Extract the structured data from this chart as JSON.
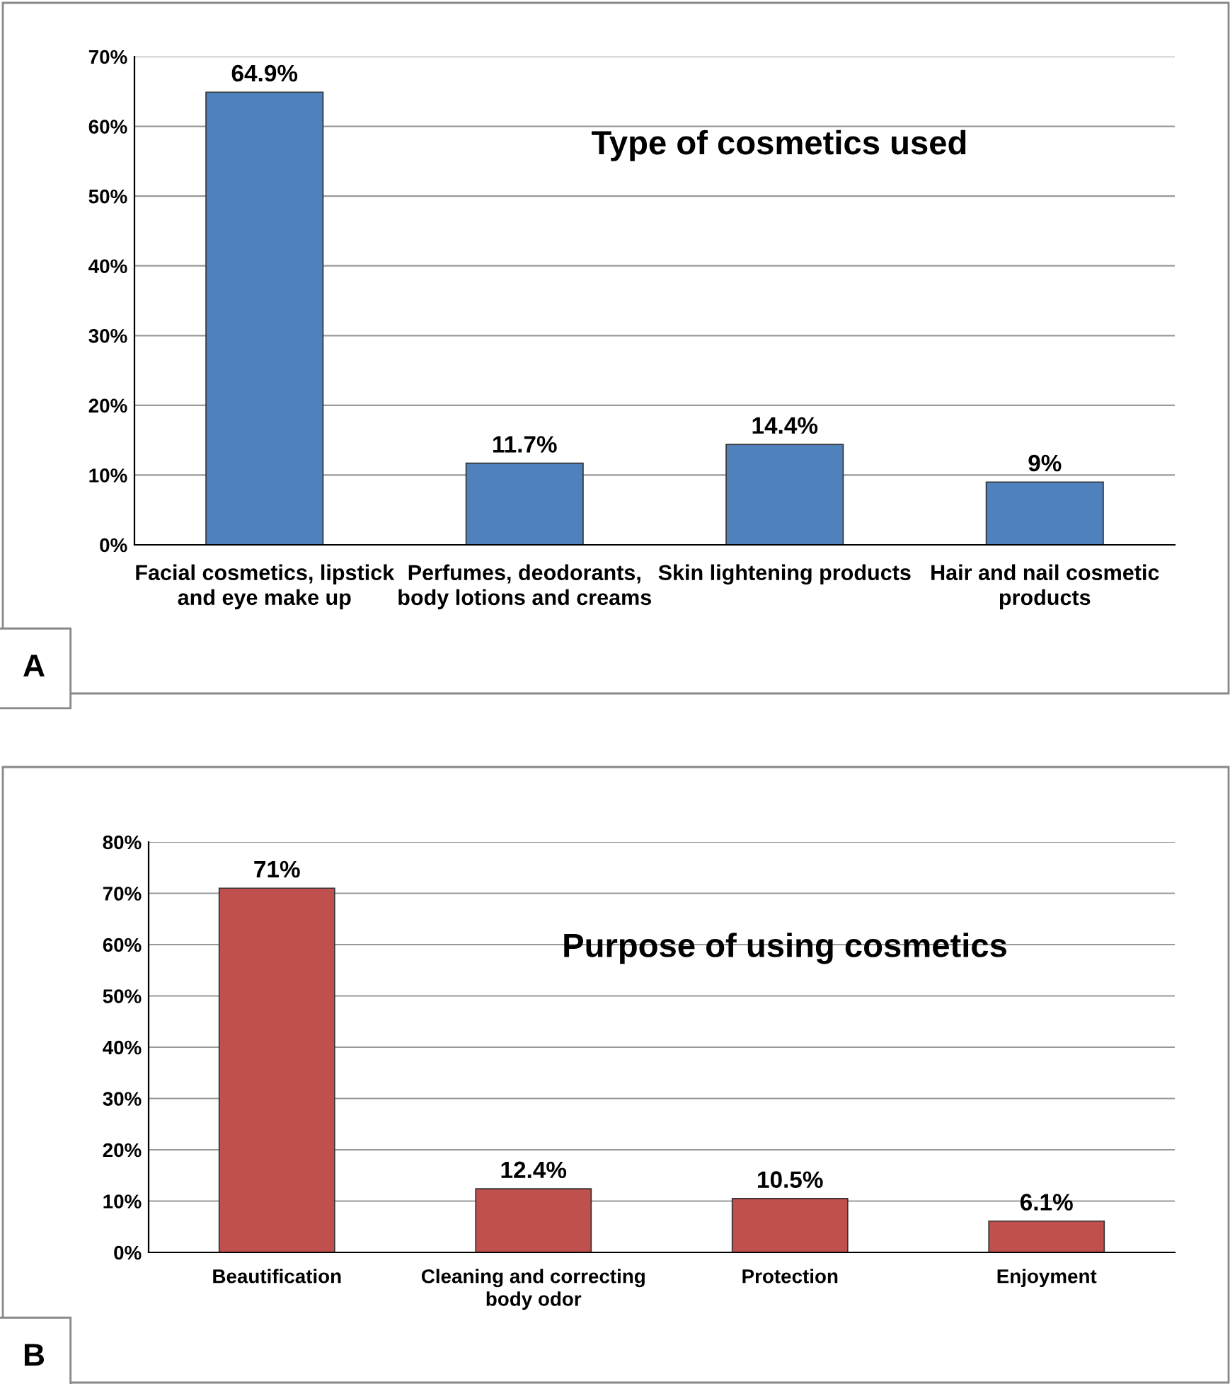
{
  "chart_data": [
    {
      "type": "bar",
      "title": "Type of cosmetics used",
      "categories": [
        "Facial cosmetics, lipstick and eye make up",
        "Perfumes, deodorants, body lotions and creams",
        "Skin lightening products",
        "Hair and nail cosmetic products"
      ],
      "values": [
        64.9,
        11.7,
        14.4,
        9
      ],
      "color": "#4f81bd",
      "value_labels": [
        "64.9%",
        "11.7%",
        "14.4%",
        "9%"
      ],
      "ylim": [
        0,
        70
      ],
      "yticks": [
        {
          "value": 0,
          "label": "0%"
        },
        {
          "value": 10,
          "label": "10%"
        },
        {
          "value": 20,
          "label": "20%"
        },
        {
          "value": 30,
          "label": "30%"
        },
        {
          "value": 40,
          "label": "40%"
        },
        {
          "value": 50,
          "label": "50%"
        },
        {
          "value": 60,
          "label": "60%"
        },
        {
          "value": 70,
          "label": "70%"
        }
      ],
      "grid": "y",
      "annotations": [
        "A"
      ]
    },
    {
      "type": "bar",
      "title": "Purpose of using cosmetics",
      "categories": [
        "Beautification",
        "Cleaning and correcting body odor",
        "Protection",
        "Enjoyment"
      ],
      "values": [
        71,
        12.4,
        10.5,
        6.1
      ],
      "color": "#c0504d",
      "value_labels": [
        "71%",
        "12.4%",
        "10.5%",
        "6.1%"
      ],
      "ylim": [
        0,
        80
      ],
      "yticks": [
        {
          "value": 0,
          "label": "0%"
        },
        {
          "value": 10,
          "label": "10%"
        },
        {
          "value": 20,
          "label": "20%"
        },
        {
          "value": 30,
          "label": "30%"
        },
        {
          "value": 40,
          "label": "40%"
        },
        {
          "value": 50,
          "label": "50%"
        },
        {
          "value": 60,
          "label": "60%"
        },
        {
          "value": 70,
          "label": "70%"
        },
        {
          "value": 80,
          "label": "80%"
        }
      ],
      "grid": "y",
      "annotations": [
        "B"
      ]
    }
  ]
}
